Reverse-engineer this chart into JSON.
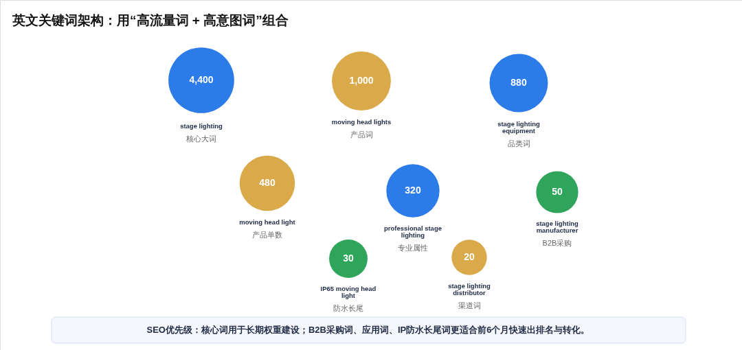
{
  "chart_data": {
    "type": "other",
    "title": "英文关键词架构：用“高流量词 + 高意图词”组合",
    "categories": [
      "stage lighting",
      "moving head lights",
      "stage lighting equipment",
      "moving head light",
      "professional stage lighting",
      "stage lighting manufacturer",
      "IP65 moving head light",
      "stage lighting distributor"
    ],
    "values": [
      4400,
      1000,
      880,
      480,
      320,
      50,
      30,
      20
    ],
    "colors": [
      "#2b7ce9",
      "#d9a94a",
      "#2b7ce9",
      "#d9a94a",
      "#2b7ce9",
      "#2ea55a",
      "#2ea55a",
      "#d9a94a"
    ],
    "value_labels": [
      "4,400",
      "1,000",
      "880",
      "480",
      "320",
      "50",
      "30",
      "20"
    ],
    "annotations": [
      {
        "text": "核心大词",
        "x": "stage lighting"
      },
      {
        "text": "产品词",
        "x": "moving head lights"
      },
      {
        "text": "品类词",
        "x": "stage lighting equipment"
      },
      {
        "text": "产品单数",
        "x": "moving head light"
      },
      {
        "text": "专业属性",
        "x": "professional stage lighting"
      },
      {
        "text": "B2B采购",
        "x": "stage lighting manufacturer"
      },
      {
        "text": "防水长尾",
        "x": "IP65 moving head light"
      },
      {
        "text": "渠道词",
        "x": "stage lighting distributor"
      },
      "SEO优先级：核心词用于长期权重建设；B2B采购词、应用词、IP防水长尾词更适合前6个月快速出排名与转化。"
    ]
  }
}
